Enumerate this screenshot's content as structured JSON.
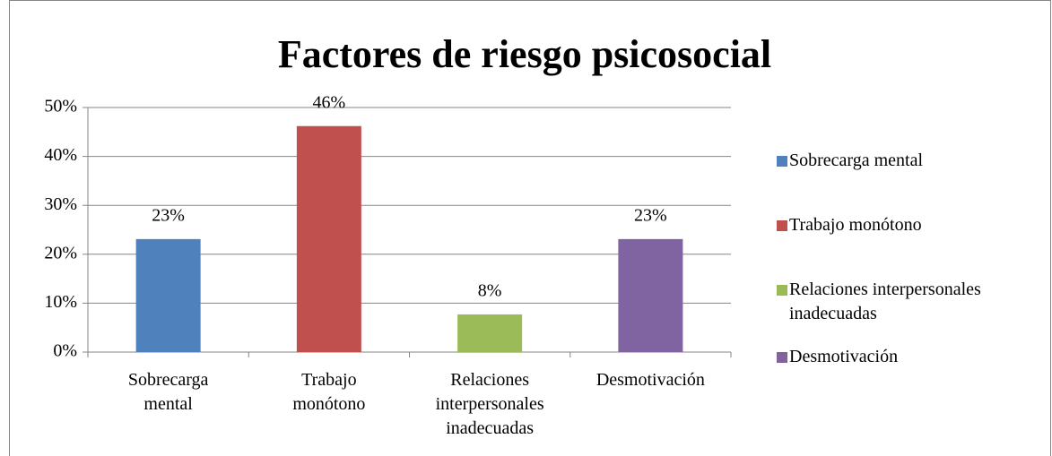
{
  "chart_data": {
    "type": "bar",
    "title": "Factores de riesgo psicosocial",
    "categories": [
      "Sobrecarga mental",
      "Trabajo monótono",
      "Relaciones interpersonales inadecuadas",
      "Desmotivación"
    ],
    "values": [
      23.1,
      46.2,
      7.7,
      23.1
    ],
    "value_labels": [
      "23%",
      "46%",
      "8%",
      "23%"
    ],
    "colors": [
      "#4f81bd",
      "#c0504d",
      "#9bbb59",
      "#8064a2"
    ],
    "ylim": [
      0,
      50
    ],
    "yticks": [
      {
        "value": 0,
        "label": "0%"
      },
      {
        "value": 10,
        "label": "10%"
      },
      {
        "value": 20,
        "label": "20%"
      },
      {
        "value": 30,
        "label": "30%"
      },
      {
        "value": 40,
        "label": "40%"
      },
      {
        "value": 50,
        "label": "50%"
      }
    ],
    "grid": true,
    "legend": "right"
  }
}
